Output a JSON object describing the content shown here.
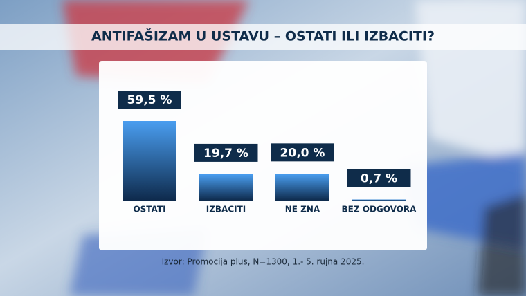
{
  "chart_data": {
    "type": "bar",
    "title": "ANTIFAŠIZAM U USTAVU – OSTATI ILI IZBACITI?",
    "categories": [
      "OSTATI",
      "IZBACITI",
      "NE ZNA",
      "BEZ ODGOVORA"
    ],
    "values": [
      59.5,
      19.7,
      20.0,
      0.7
    ],
    "value_labels": [
      "59,5 %",
      "19,7 %",
      "20,0 %",
      "0,7 %"
    ],
    "color": "#4a9ef0",
    "source": "Izvor: Promocija plus, N=1300, 1.- 5. rujna 2025."
  }
}
